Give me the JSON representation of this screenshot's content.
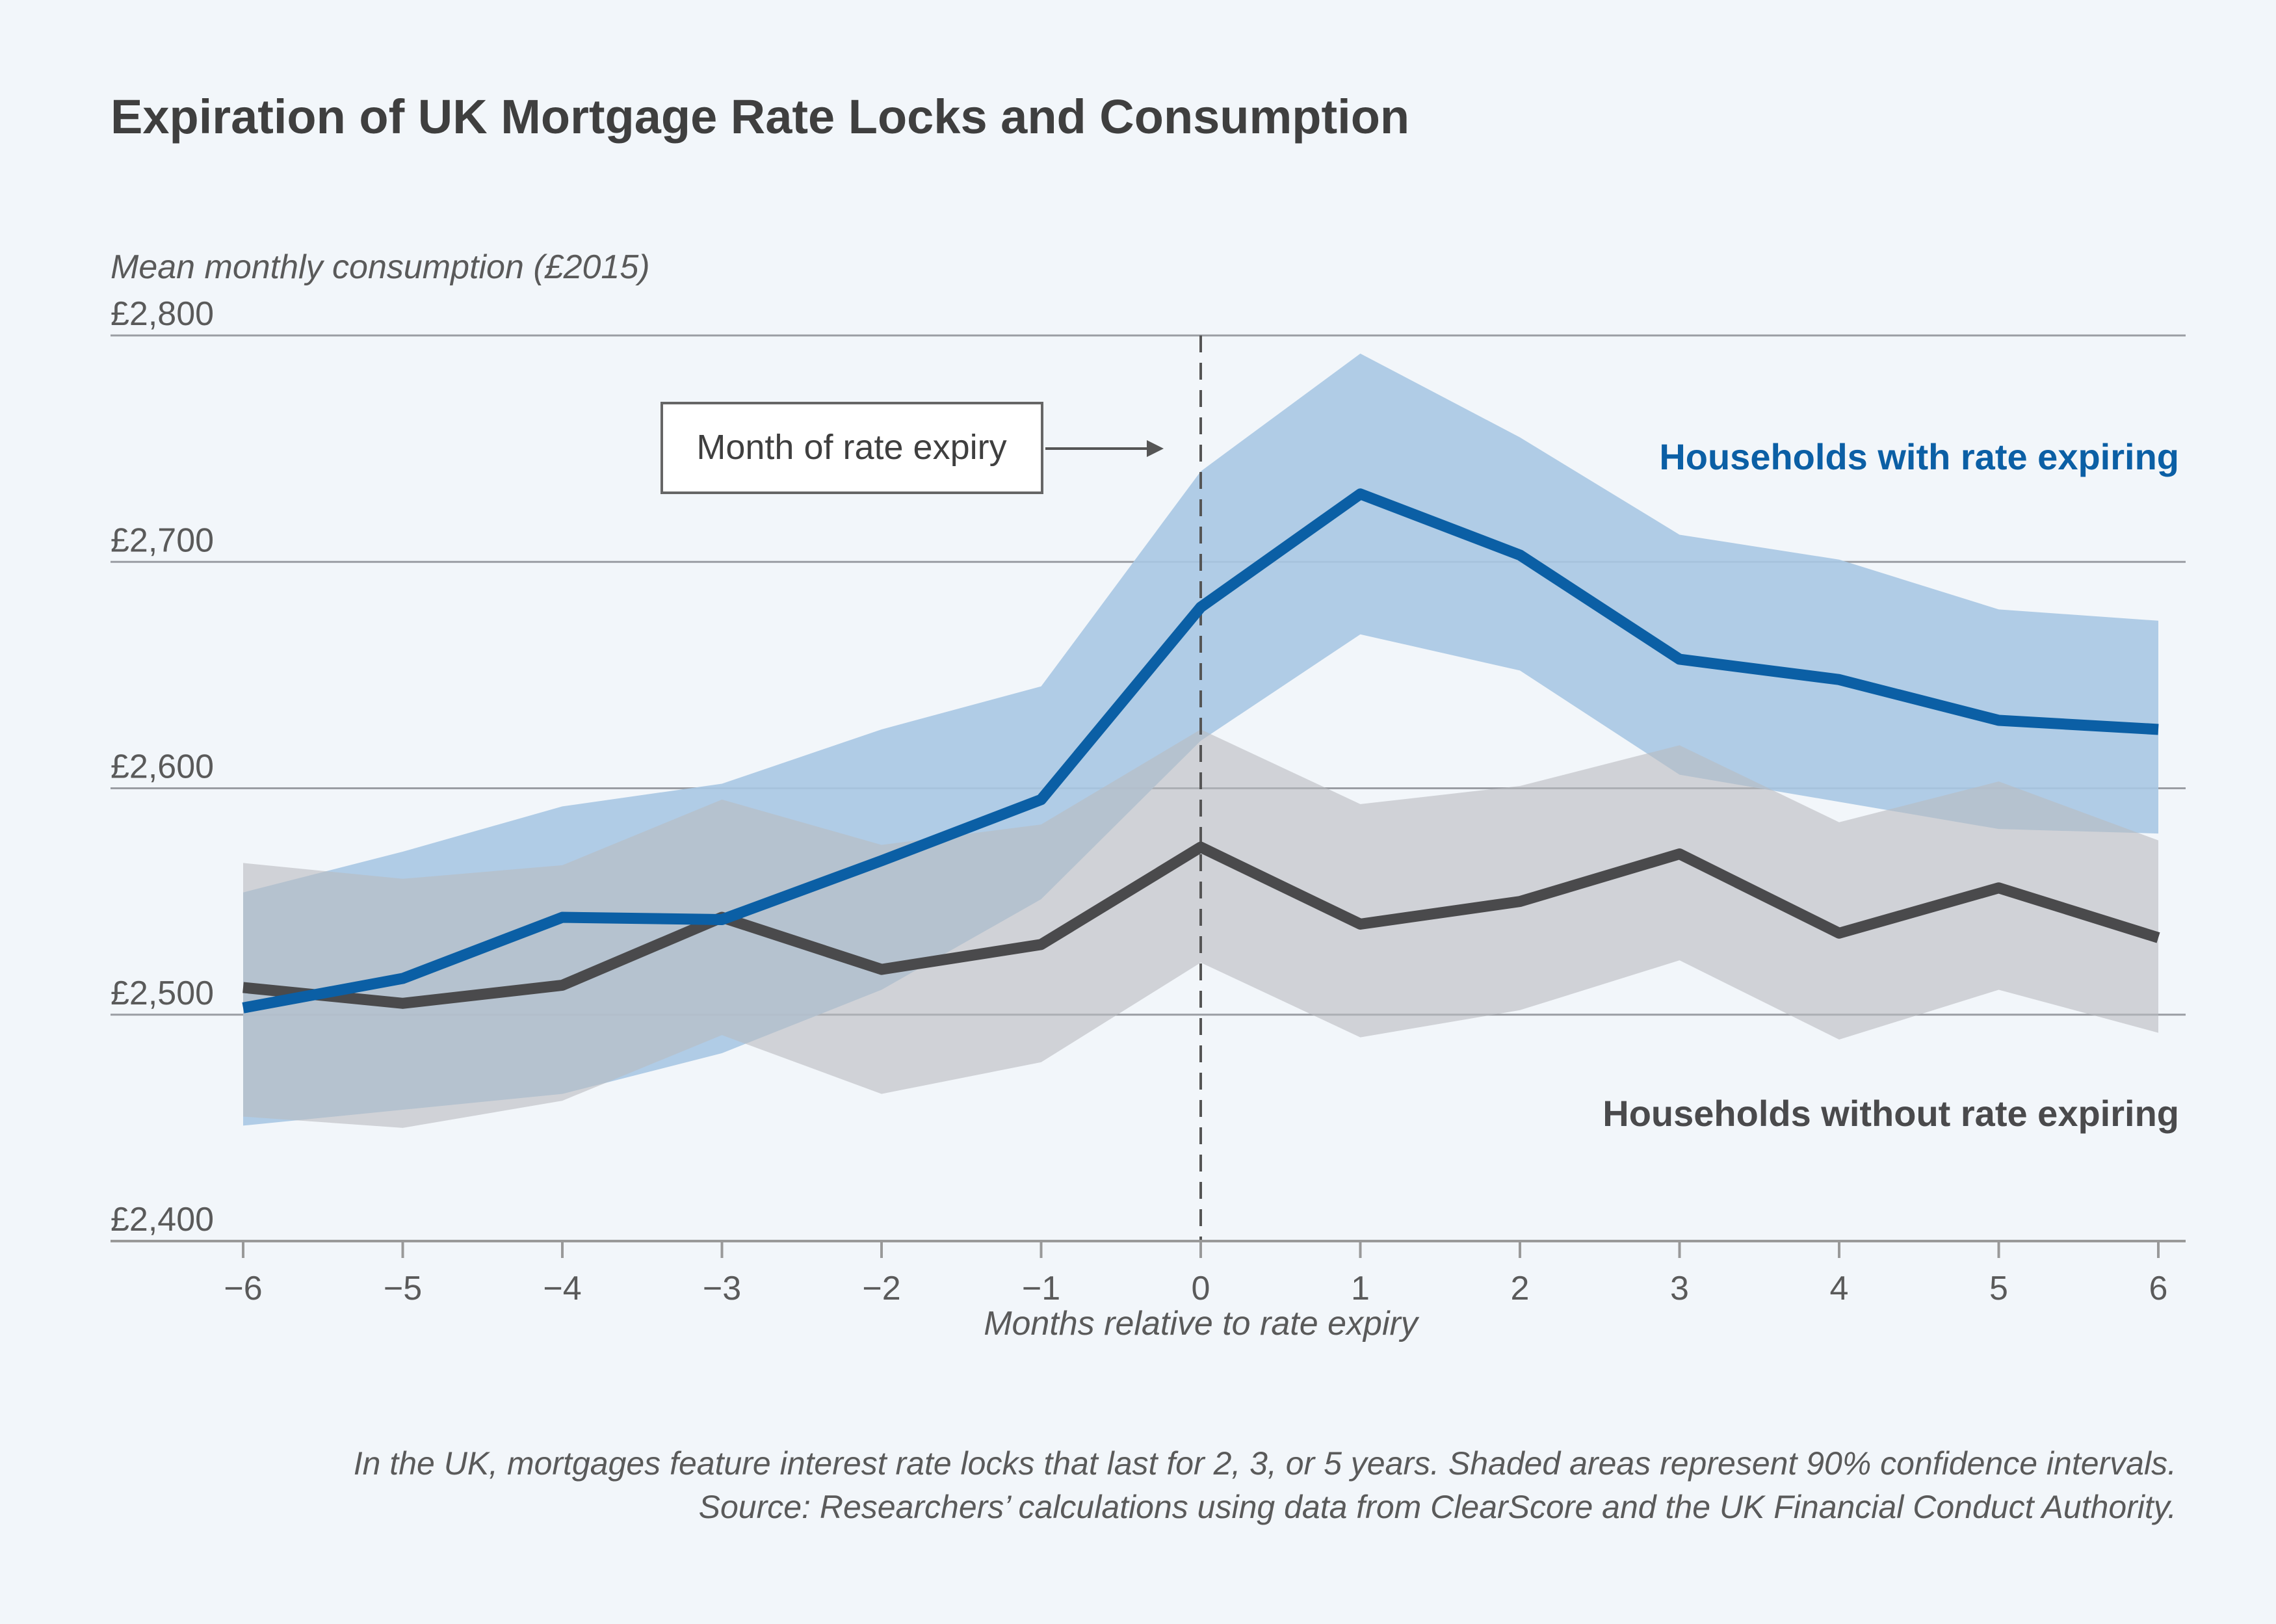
{
  "chart_data": {
    "type": "line",
    "title": "Expiration of UK Mortgage Rate Locks and Consumption",
    "ylabel": "Mean monthly consumption (£2015)",
    "xlabel": "Months relative to rate expiry",
    "x": [
      -6,
      -5,
      -4,
      -3,
      -2,
      -1,
      0,
      1,
      2,
      3,
      4,
      5,
      6
    ],
    "x_tick_labels": [
      "−6",
      "−5",
      "−4",
      "−3",
      "−2",
      "−1",
      "0",
      "1",
      "2",
      "3",
      "4",
      "5",
      "6"
    ],
    "ylim": [
      2400,
      2800
    ],
    "y_ticks": [
      2400,
      2500,
      2600,
      2700,
      2800
    ],
    "y_tick_labels": [
      "£2,400",
      "£2,500",
      "£2,600",
      "£2,700",
      "£2,800"
    ],
    "grid": true,
    "series": [
      {
        "name": "Households with rate expiring",
        "color": "#0b5fa5",
        "band_color": "#a9c8e3",
        "values": [
          2503,
          2516,
          2543,
          2542,
          2568,
          2595,
          2680,
          2730,
          2703,
          2657,
          2648,
          2630,
          2626
        ],
        "ci_upper": [
          2554,
          2572,
          2592,
          2602,
          2626,
          2645,
          2740,
          2792,
          2755,
          2712,
          2701,
          2679,
          2674
        ],
        "ci_lower": [
          2451,
          2458,
          2465,
          2483,
          2511,
          2551,
          2621,
          2668,
          2652,
          2606,
          2594,
          2582,
          2580
        ]
      },
      {
        "name": "Households without rate expiring",
        "color": "#4a4a4c",
        "band_color": "#b9bbc0",
        "values": [
          2512,
          2505,
          2513,
          2543,
          2520,
          2531,
          2574,
          2540,
          2550,
          2571,
          2536,
          2556,
          2534
        ],
        "ci_upper": [
          2567,
          2560,
          2566,
          2595,
          2575,
          2584,
          2626,
          2593,
          2601,
          2619,
          2585,
          2603,
          2577
        ],
        "ci_lower": [
          2455,
          2450,
          2462,
          2491,
          2465,
          2479,
          2523,
          2490,
          2502,
          2524,
          2489,
          2511,
          2492
        ]
      }
    ],
    "annotation": {
      "text": "Month of rate expiry",
      "x": 0
    },
    "notes": [
      "In the UK, mortgages feature interest rate locks that last for 2, 3, or 5 years. Shaded areas represent 90% confidence intervals.",
      "Source: Researchers’ calculations using data from ClearScore and the UK Financial Conduct Authority."
    ]
  }
}
